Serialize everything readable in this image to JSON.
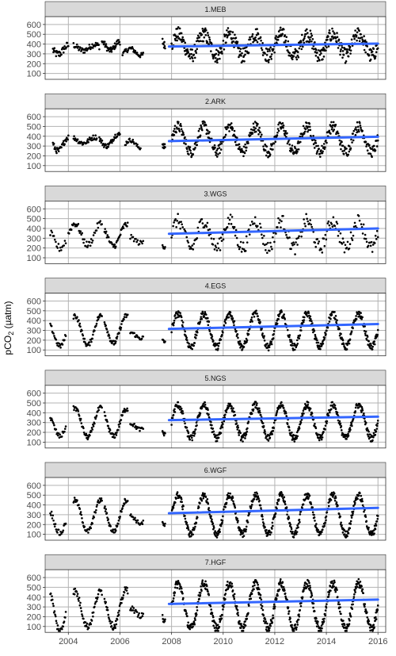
{
  "chart_data": {
    "type": "scatter",
    "ylabel": "pCO2 (µatm)",
    "ylabel_parts": {
      "base": "pCO",
      "sub": "2",
      "unit": " (µatm)"
    },
    "xlim": [
      2003.1,
      2016.3
    ],
    "ylim": [
      40,
      680
    ],
    "x_ticks": [
      2004,
      2006,
      2008,
      2010,
      2012,
      2014,
      2016
    ],
    "y_ticks": [
      100,
      200,
      300,
      400,
      500,
      600
    ],
    "grid": true,
    "panel_background": "#ffffff",
    "grid_color": "#b3b3b3",
    "strip_fill": "#d9d9d9",
    "point_color": "#000000",
    "trend_color": "#3366ff",
    "panels": [
      {
        "label": "1.MEB",
        "trend": {
          "x": [
            2007.9,
            2016.0
          ],
          "y": [
            375,
            405
          ]
        },
        "segments": [
          {
            "x0": 2003.4,
            "x1": 2004.0,
            "base": 340,
            "amp": 45,
            "period": 0.8,
            "noise": 40,
            "n": 30
          },
          {
            "x0": 2004.2,
            "x1": 2005.2,
            "base": 365,
            "amp": 30,
            "period": 0.9,
            "noise": 30,
            "n": 45
          },
          {
            "x0": 2005.3,
            "x1": 2006.0,
            "base": 380,
            "amp": 45,
            "period": 0.7,
            "noise": 30,
            "n": 40
          },
          {
            "x0": 2006.1,
            "x1": 2006.9,
            "base": 320,
            "amp": 35,
            "period": 0.8,
            "noise": 25,
            "n": 35
          },
          {
            "x0": 2007.65,
            "x1": 2007.75,
            "base": 430,
            "amp": 40,
            "period": 0.3,
            "noise": 40,
            "n": 8
          },
          {
            "x0": 2008.0,
            "x1": 2016.0,
            "base": 390,
            "amp": 110,
            "period": 1.0,
            "noise": 75,
            "n": 520
          }
        ]
      },
      {
        "label": "2.ARK",
        "trend": {
          "x": [
            2007.9,
            2016.0
          ],
          "y": [
            350,
            395
          ]
        },
        "segments": [
          {
            "x0": 2003.4,
            "x1": 2004.0,
            "base": 320,
            "amp": 70,
            "period": 0.8,
            "noise": 30,
            "n": 30
          },
          {
            "x0": 2004.2,
            "x1": 2005.1,
            "base": 360,
            "amp": 30,
            "period": 0.9,
            "noise": 25,
            "n": 40
          },
          {
            "x0": 2005.2,
            "x1": 2006.0,
            "base": 360,
            "amp": 60,
            "period": 0.9,
            "noise": 25,
            "n": 45
          },
          {
            "x0": 2006.2,
            "x1": 2006.8,
            "base": 320,
            "amp": 40,
            "period": 0.8,
            "noise": 20,
            "n": 25
          },
          {
            "x0": 2007.65,
            "x1": 2007.75,
            "base": 320,
            "amp": 30,
            "period": 0.3,
            "noise": 30,
            "n": 8
          },
          {
            "x0": 2008.0,
            "x1": 2016.0,
            "base": 370,
            "amp": 130,
            "period": 1.0,
            "noise": 55,
            "n": 480
          }
        ]
      },
      {
        "label": "3.WGS",
        "trend": {
          "x": [
            2007.9,
            2016.0
          ],
          "y": [
            345,
            400
          ]
        },
        "segments": [
          {
            "x0": 2003.3,
            "x1": 2003.9,
            "base": 280,
            "amp": 80,
            "period": 0.9,
            "noise": 40,
            "n": 18
          },
          {
            "x0": 2004.0,
            "x1": 2005.3,
            "base": 340,
            "amp": 110,
            "period": 1.0,
            "noise": 35,
            "n": 45
          },
          {
            "x0": 2005.4,
            "x1": 2006.3,
            "base": 330,
            "amp": 110,
            "period": 1.0,
            "noise": 30,
            "n": 40
          },
          {
            "x0": 2006.4,
            "x1": 2006.9,
            "base": 280,
            "amp": 30,
            "period": 0.8,
            "noise": 25,
            "n": 15
          },
          {
            "x0": 2007.65,
            "x1": 2007.75,
            "base": 230,
            "amp": 20,
            "period": 0.3,
            "noise": 20,
            "n": 6
          },
          {
            "x0": 2008.0,
            "x1": 2016.0,
            "base": 340,
            "amp": 140,
            "period": 1.0,
            "noise": 70,
            "n": 260
          }
        ]
      },
      {
        "label": "4.EGS",
        "trend": {
          "x": [
            2007.9,
            2016.0
          ],
          "y": [
            315,
            365
          ]
        },
        "segments": [
          {
            "x0": 2003.3,
            "x1": 2003.9,
            "base": 250,
            "amp": 110,
            "period": 0.9,
            "noise": 25,
            "n": 25
          },
          {
            "x0": 2004.2,
            "x1": 2005.3,
            "base": 300,
            "amp": 150,
            "period": 1.0,
            "noise": 25,
            "n": 55
          },
          {
            "x0": 2005.4,
            "x1": 2006.3,
            "base": 310,
            "amp": 140,
            "period": 1.0,
            "noise": 25,
            "n": 50
          },
          {
            "x0": 2006.4,
            "x1": 2006.9,
            "base": 250,
            "amp": 30,
            "period": 0.8,
            "noise": 20,
            "n": 20
          },
          {
            "x0": 2007.65,
            "x1": 2007.75,
            "base": 200,
            "amp": 20,
            "period": 0.3,
            "noise": 20,
            "n": 6
          },
          {
            "x0": 2008.0,
            "x1": 2016.0,
            "base": 300,
            "amp": 170,
            "period": 1.0,
            "noise": 35,
            "n": 520
          }
        ]
      },
      {
        "label": "5.NGS",
        "trend": {
          "x": [
            2007.9,
            2016.0
          ],
          "y": [
            325,
            360
          ]
        },
        "segments": [
          {
            "x0": 2003.3,
            "x1": 2003.9,
            "base": 260,
            "amp": 100,
            "period": 0.9,
            "noise": 25,
            "n": 25
          },
          {
            "x0": 2004.2,
            "x1": 2005.3,
            "base": 300,
            "amp": 150,
            "period": 1.0,
            "noise": 25,
            "n": 55
          },
          {
            "x0": 2005.4,
            "x1": 2006.3,
            "base": 300,
            "amp": 140,
            "period": 1.0,
            "noise": 25,
            "n": 50
          },
          {
            "x0": 2006.4,
            "x1": 2006.9,
            "base": 260,
            "amp": 30,
            "period": 0.8,
            "noise": 20,
            "n": 20
          },
          {
            "x0": 2007.65,
            "x1": 2007.75,
            "base": 210,
            "amp": 30,
            "period": 0.3,
            "noise": 20,
            "n": 6
          },
          {
            "x0": 2008.0,
            "x1": 2016.0,
            "base": 310,
            "amp": 170,
            "period": 1.0,
            "noise": 35,
            "n": 540
          }
        ]
      },
      {
        "label": "6.WGF",
        "trend": {
          "x": [
            2007.9,
            2016.0
          ],
          "y": [
            315,
            370
          ]
        },
        "segments": [
          {
            "x0": 2003.3,
            "x1": 2003.9,
            "base": 230,
            "amp": 120,
            "period": 0.9,
            "noise": 30,
            "n": 25
          },
          {
            "x0": 2004.2,
            "x1": 2005.3,
            "base": 290,
            "amp": 160,
            "period": 1.0,
            "noise": 25,
            "n": 55
          },
          {
            "x0": 2005.4,
            "x1": 2006.3,
            "base": 290,
            "amp": 160,
            "period": 1.0,
            "noise": 25,
            "n": 50
          },
          {
            "x0": 2006.4,
            "x1": 2006.9,
            "base": 250,
            "amp": 40,
            "period": 0.8,
            "noise": 20,
            "n": 20
          },
          {
            "x0": 2007.65,
            "x1": 2007.75,
            "base": 220,
            "amp": 30,
            "period": 0.3,
            "noise": 20,
            "n": 6
          },
          {
            "x0": 2008.0,
            "x1": 2016.0,
            "base": 300,
            "amp": 200,
            "period": 1.0,
            "noise": 35,
            "n": 560
          }
        ]
      },
      {
        "label": "7.HGF",
        "trend": {
          "x": [
            2007.9,
            2016.0
          ],
          "y": [
            330,
            375
          ]
        },
        "segments": [
          {
            "x0": 2003.3,
            "x1": 2003.9,
            "base": 260,
            "amp": 210,
            "period": 0.9,
            "noise": 40,
            "n": 30
          },
          {
            "x0": 2004.2,
            "x1": 2005.3,
            "base": 280,
            "amp": 180,
            "period": 1.0,
            "noise": 35,
            "n": 55
          },
          {
            "x0": 2005.4,
            "x1": 2006.3,
            "base": 290,
            "amp": 190,
            "period": 1.0,
            "noise": 35,
            "n": 50
          },
          {
            "x0": 2006.4,
            "x1": 2006.9,
            "base": 250,
            "amp": 40,
            "period": 0.8,
            "noise": 25,
            "n": 20
          },
          {
            "x0": 2007.65,
            "x1": 2007.75,
            "base": 200,
            "amp": 60,
            "period": 0.3,
            "noise": 30,
            "n": 8
          },
          {
            "x0": 2008.0,
            "x1": 2016.0,
            "base": 310,
            "amp": 230,
            "period": 1.0,
            "noise": 45,
            "n": 620
          }
        ]
      }
    ]
  }
}
